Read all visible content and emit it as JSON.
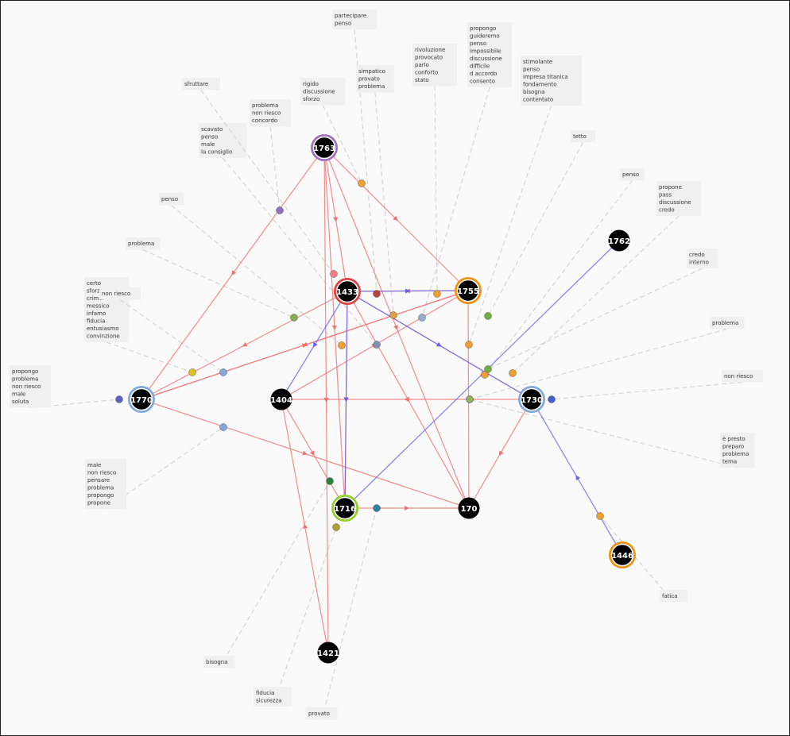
{
  "nodes": [
    {
      "label": "1763"
    },
    {
      "label": "1433"
    },
    {
      "label": "1755"
    },
    {
      "label": "1762"
    },
    {
      "label": "1770"
    },
    {
      "label": "1404"
    },
    {
      "label": "1730"
    },
    {
      "label": "1716"
    },
    {
      "label": "170"
    },
    {
      "label": "1446"
    },
    {
      "label": "1421"
    }
  ],
  "annotations": [
    {
      "lines": [
        "partecipare",
        "penso"
      ]
    },
    {
      "lines": [
        "simpatico",
        "provato",
        "problema"
      ]
    },
    {
      "lines": [
        "rivoluzione",
        "provocato",
        "parlo",
        "conforto",
        "stato"
      ]
    },
    {
      "lines": [
        "propongo",
        "guideremo",
        "penso",
        "impossibile",
        "discussione",
        "difficile",
        "d accordo",
        "consento"
      ]
    },
    {
      "lines": [
        "stimolante",
        "penso",
        "impresa titanica",
        "fondamento",
        "bisogna",
        "contentato"
      ]
    },
    {
      "lines": [
        "tetto"
      ]
    },
    {
      "lines": [
        "penso"
      ]
    },
    {
      "lines": [
        "propone",
        "pass",
        "discussione",
        "credo"
      ]
    },
    {
      "lines": [
        "credo",
        "interno"
      ]
    },
    {
      "lines": [
        "problema"
      ]
    },
    {
      "lines": [
        "non riesco"
      ]
    },
    {
      "lines": [
        "è presto",
        "preparo",
        "problema",
        "tema"
      ]
    },
    {
      "lines": [
        "fatica"
      ]
    },
    {
      "lines": [
        "provato"
      ]
    },
    {
      "lines": [
        "fiducia",
        "sicurezza"
      ]
    },
    {
      "lines": [
        "bisogna"
      ]
    },
    {
      "lines": [
        "male",
        "non riesco",
        "pensare",
        "problema",
        "propongo",
        "propone"
      ]
    },
    {
      "lines": [
        "propongo",
        "problema",
        "non riesco",
        "male",
        "soluta"
      ]
    },
    {
      "lines": [
        "certo",
        "sforzo",
        "crimal",
        "messico",
        "infamo",
        "fiducia",
        "entusiasmo",
        "convinzione"
      ]
    },
    {
      "lines": [
        "non riesco"
      ]
    },
    {
      "lines": [
        "problema"
      ]
    },
    {
      "lines": [
        "penso"
      ]
    },
    {
      "lines": [
        "scavato",
        "penso",
        "male",
        "la consiglio"
      ]
    },
    {
      "lines": [
        "sfruttare"
      ]
    },
    {
      "lines": [
        "problema",
        "non riesco",
        "concordo"
      ]
    },
    {
      "lines": [
        "rigido",
        "discussione",
        "sforzo"
      ]
    }
  ]
}
